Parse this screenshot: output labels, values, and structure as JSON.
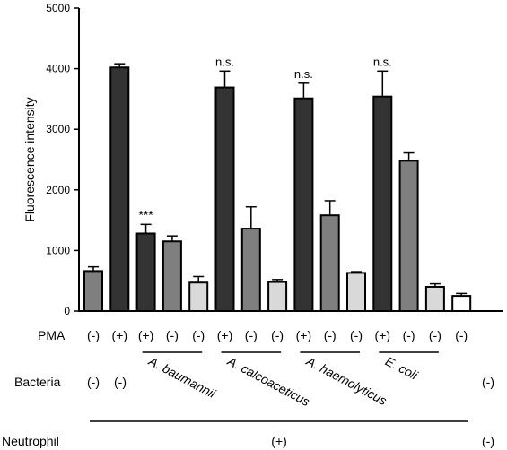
{
  "chart_data": {
    "type": "bar",
    "ylabel": "Fluorescence intensity",
    "ylim": [
      0,
      5000
    ],
    "yticks": [
      0,
      1000,
      2000,
      3000,
      4000,
      5000
    ],
    "bars": [
      {
        "value": 660,
        "error": 70,
        "color": "#7f7f7f",
        "annotation": ""
      },
      {
        "value": 4020,
        "error": 60,
        "color": "#333333",
        "annotation": ""
      },
      {
        "value": 1280,
        "error": 150,
        "color": "#333333",
        "annotation": "***"
      },
      {
        "value": 1150,
        "error": 90,
        "color": "#7f7f7f",
        "annotation": ""
      },
      {
        "value": 470,
        "error": 100,
        "color": "#d9d9d9",
        "annotation": ""
      },
      {
        "value": 3690,
        "error": 270,
        "color": "#333333",
        "annotation": "n.s."
      },
      {
        "value": 1360,
        "error": 360,
        "color": "#7f7f7f",
        "annotation": ""
      },
      {
        "value": 480,
        "error": 40,
        "color": "#d9d9d9",
        "annotation": ""
      },
      {
        "value": 3510,
        "error": 250,
        "color": "#333333",
        "annotation": "n.s."
      },
      {
        "value": 1580,
        "error": 240,
        "color": "#7f7f7f",
        "annotation": ""
      },
      {
        "value": 630,
        "error": 20,
        "color": "#d9d9d9",
        "annotation": ""
      },
      {
        "value": 3540,
        "error": 420,
        "color": "#333333",
        "annotation": "n.s."
      },
      {
        "value": 2480,
        "error": 130,
        "color": "#7f7f7f",
        "annotation": ""
      },
      {
        "value": 400,
        "error": 50,
        "color": "#d9d9d9",
        "annotation": ""
      },
      {
        "value": 250,
        "error": 40,
        "color": "#ffffff",
        "annotation": ""
      }
    ],
    "pma_label": "PMA",
    "pma": [
      "(-)",
      "(+)",
      "(+)",
      "(-)",
      "(-)",
      "(+)",
      "(-)",
      "(-)",
      "(+)",
      "(-)",
      "(-)",
      "(+)",
      "(-)",
      "(-)",
      "(-)"
    ],
    "bacteria_label": "Bacteria",
    "bacteria_controls": [
      "(-)",
      "(-)"
    ],
    "bacteria_end": "(-)",
    "bacteria_groups": [
      "A. baumannii",
      "A. calcoaceticus",
      "A. haemolyticus",
      "E. coli"
    ],
    "neutrophil_label": "Neutrophil",
    "neutrophil_pos": "(+)",
    "neutrophil_neg": "(-)"
  }
}
